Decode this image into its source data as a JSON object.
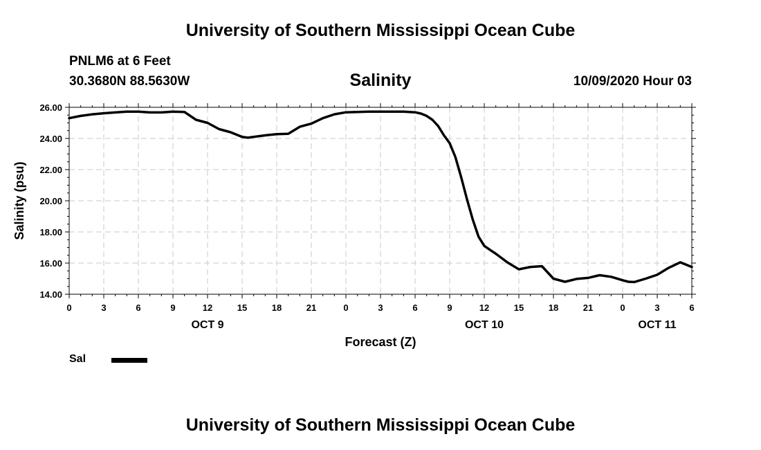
{
  "header": {
    "title": "University of Southern Mississippi Ocean Cube",
    "station": "PNLM6 at 6 Feet",
    "coords": "30.3680N 88.5630W",
    "run_time": "10/09/2020 Hour 03"
  },
  "footer": {
    "title": "University of Southern Mississippi Ocean Cube"
  },
  "legend": {
    "label": "Sal"
  },
  "chart_data": {
    "type": "line",
    "title": "Salinity",
    "xlabel": "Forecast (Z)",
    "ylabel": "Salinity (psu)",
    "xlim": [
      0,
      54
    ],
    "ylim": [
      14,
      26
    ],
    "grid": true,
    "x_ticks": [
      0,
      3,
      6,
      9,
      12,
      15,
      18,
      21,
      24,
      27,
      30,
      33,
      36,
      39,
      42,
      45,
      48,
      51,
      54
    ],
    "x_tick_labels": [
      "0",
      "3",
      "6",
      "9",
      "12",
      "15",
      "18",
      "21",
      "0",
      "3",
      "6",
      "9",
      "12",
      "15",
      "18",
      "21",
      "0",
      "3",
      "6"
    ],
    "y_ticks": [
      14,
      16,
      18,
      20,
      22,
      24,
      26
    ],
    "y_tick_labels": [
      "14.00",
      "16.00",
      "18.00",
      "20.00",
      "22.00",
      "24.00",
      "26.00"
    ],
    "day_labels": [
      {
        "x": 12,
        "label": "OCT 9"
      },
      {
        "x": 36,
        "label": "OCT 10"
      },
      {
        "x": 51,
        "label": "OCT 11"
      }
    ],
    "series": [
      {
        "name": "Sal",
        "color": "#000000",
        "x": [
          0,
          1,
          2,
          3,
          4,
          5,
          6,
          7,
          8,
          9,
          10,
          11,
          12,
          13,
          14,
          15,
          15.5,
          16,
          17,
          18,
          19,
          20,
          21,
          22,
          23,
          24,
          25,
          26,
          27,
          28,
          29,
          30,
          30.5,
          31,
          31.5,
          32,
          32.5,
          33,
          33.5,
          34,
          34.5,
          35,
          35.5,
          36,
          36.5,
          37,
          38,
          39,
          40,
          41,
          42,
          43,
          44,
          45,
          46,
          47,
          48,
          48.5,
          49,
          50,
          51,
          52,
          53,
          54
        ],
        "values": [
          25.3,
          25.45,
          25.55,
          25.62,
          25.67,
          25.72,
          25.72,
          25.67,
          25.67,
          25.72,
          25.7,
          25.2,
          25.0,
          24.6,
          24.4,
          24.1,
          24.05,
          24.1,
          24.2,
          24.28,
          24.3,
          24.75,
          24.95,
          25.3,
          25.55,
          25.68,
          25.7,
          25.72,
          25.72,
          25.72,
          25.72,
          25.68,
          25.6,
          25.45,
          25.2,
          24.8,
          24.2,
          23.7,
          22.8,
          21.5,
          20.1,
          18.8,
          17.7,
          17.1,
          16.85,
          16.6,
          16.05,
          15.6,
          15.75,
          15.8,
          15.0,
          14.8,
          14.98,
          15.05,
          15.22,
          15.12,
          14.9,
          14.8,
          14.78,
          15.0,
          15.25,
          15.7,
          16.05,
          15.75
        ]
      }
    ]
  }
}
